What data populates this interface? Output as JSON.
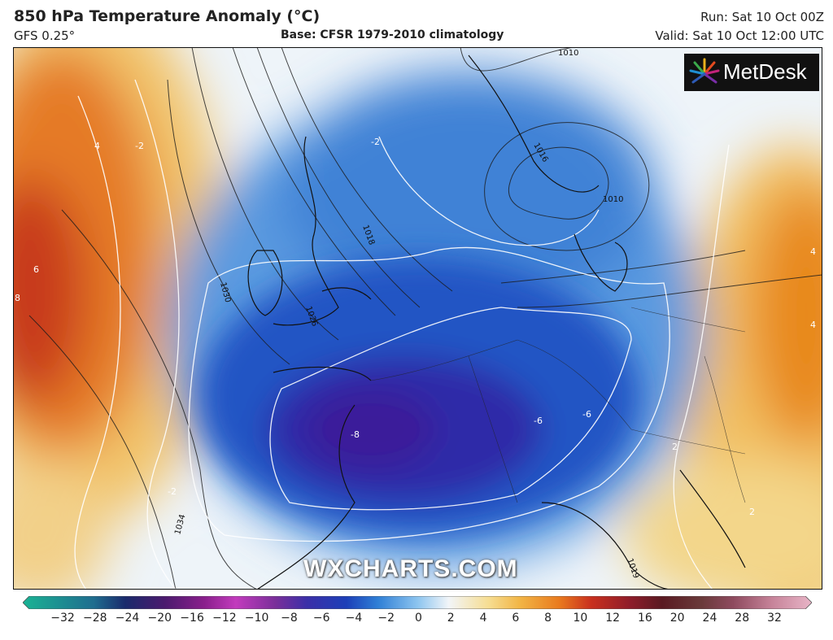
{
  "header": {
    "title": "850 hPa Temperature Anomaly (°C)",
    "model": "GFS 0.25°",
    "base": "Base: CFSR 1979-2010 climatology",
    "run": "Run: Sat 10 Oct 00Z",
    "valid": "Valid: Sat 10 Oct 12:00 UTC"
  },
  "branding": {
    "logo": "MetDesk",
    "watermark": "WXCHARTS.COM"
  },
  "map": {
    "variable": "850 hPa temperature anomaly",
    "isobar_labels": [
      "1010",
      "1010",
      "1016",
      "1018",
      "1026",
      "1030",
      "1034",
      "1010",
      "1019",
      "1018"
    ],
    "anomaly_contour_labels": [
      "-2",
      "-2",
      "-2",
      "-2",
      "2",
      "4",
      "4",
      "4",
      "6",
      "8",
      "-6",
      "-6",
      "-8",
      "2",
      "4",
      "2",
      "2",
      "-2"
    ]
  },
  "legend": {
    "ticks": [
      "−32",
      "−28",
      "−24",
      "−20",
      "−16",
      "−12",
      "−10",
      "−8",
      "−6",
      "−4",
      "−2",
      "0",
      "2",
      "4",
      "6",
      "8",
      "10",
      "12",
      "16",
      "20",
      "24",
      "28",
      "32"
    ],
    "colors": [
      "#1ab394",
      "#1f6d8f",
      "#1a2a6c",
      "#4b1a6e",
      "#8a1f8c",
      "#c23bbd",
      "#7a2f9a",
      "#3b2fa8",
      "#1c3fb8",
      "#2f7fd6",
      "#8cc4ef",
      "#f2f5f8",
      "#f6dd92",
      "#f2b545",
      "#e97a1e",
      "#c9301e",
      "#8e1c2a",
      "#5a1a22",
      "#6a3a3a",
      "#8e4a5e",
      "#a8607a",
      "#c7849a",
      "#e8b5c7"
    ]
  }
}
